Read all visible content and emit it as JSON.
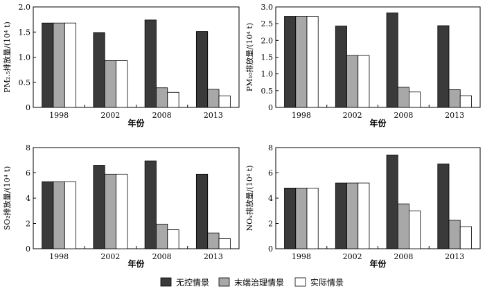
{
  "legend": [
    {
      "label": "无控情景",
      "color": "#3a3a3a"
    },
    {
      "label": "末端治理情景",
      "color": "#a8a8a8"
    },
    {
      "label": "实际情景",
      "color": "#ffffff"
    }
  ],
  "chart_data": [
    {
      "type": "bar",
      "categories": [
        "1998",
        "2002",
        "2008",
        "2013"
      ],
      "xlabel": "年份",
      "ylabel": "PM₂.₅排放量/(10⁴ t)",
      "ylim": [
        0,
        2.0
      ],
      "yticks": [
        "0",
        "0.5",
        "1.0",
        "1.5",
        "2.0"
      ],
      "ytick_values": [
        0,
        0.5,
        1.0,
        1.5,
        2.0
      ],
      "series": [
        {
          "name": "无控情景",
          "values": [
            1.68,
            1.49,
            1.74,
            1.51
          ]
        },
        {
          "name": "末端治理情景",
          "values": [
            1.68,
            0.93,
            0.39,
            0.36
          ]
        },
        {
          "name": "实际情景",
          "values": [
            1.68,
            0.93,
            0.3,
            0.23
          ]
        }
      ]
    },
    {
      "type": "bar",
      "categories": [
        "1998",
        "2002",
        "2008",
        "2013"
      ],
      "xlabel": "年份",
      "ylabel": "PM₁₀排放量/(10⁴ t)",
      "ylim": [
        0,
        3.0
      ],
      "yticks": [
        "0",
        "0.5",
        "1.0",
        "1.5",
        "2.0",
        "2.5",
        "3.0"
      ],
      "ytick_values": [
        0,
        0.5,
        1.0,
        1.5,
        2.0,
        2.5,
        3.0
      ],
      "series": [
        {
          "name": "无控情景",
          "values": [
            2.72,
            2.43,
            2.82,
            2.44
          ]
        },
        {
          "name": "末端治理情景",
          "values": [
            2.72,
            1.55,
            0.6,
            0.53
          ]
        },
        {
          "name": "实际情景",
          "values": [
            2.72,
            1.55,
            0.46,
            0.35
          ]
        }
      ]
    },
    {
      "type": "bar",
      "categories": [
        "1998",
        "2002",
        "2008",
        "2013"
      ],
      "xlabel": "年份",
      "ylabel": "SO₂排放量/(10⁴ t)",
      "ylim": [
        0,
        8
      ],
      "yticks": [
        "0",
        "2",
        "4",
        "6",
        "8"
      ],
      "ytick_values": [
        0,
        2,
        4,
        6,
        8
      ],
      "series": [
        {
          "name": "无控情景",
          "values": [
            5.3,
            6.6,
            6.95,
            5.9
          ]
        },
        {
          "name": "末端治理情景",
          "values": [
            5.3,
            5.9,
            1.95,
            1.25
          ]
        },
        {
          "name": "实际情景",
          "values": [
            5.3,
            5.9,
            1.5,
            0.8
          ]
        }
      ]
    },
    {
      "type": "bar",
      "categories": [
        "1998",
        "2002",
        "2008",
        "2013"
      ],
      "xlabel": "年份",
      "ylabel": "NOₓ排放量/(10⁴ t)",
      "ylim": [
        0,
        8
      ],
      "yticks": [
        "0",
        "2",
        "4",
        "6",
        "8"
      ],
      "ytick_values": [
        0,
        2,
        4,
        6,
        8
      ],
      "series": [
        {
          "name": "无控情景",
          "values": [
            4.8,
            5.2,
            7.4,
            6.7
          ]
        },
        {
          "name": "末端治理情景",
          "values": [
            4.8,
            5.2,
            3.55,
            2.25
          ]
        },
        {
          "name": "实际情景",
          "values": [
            4.8,
            5.2,
            3.0,
            1.75
          ]
        }
      ]
    }
  ]
}
